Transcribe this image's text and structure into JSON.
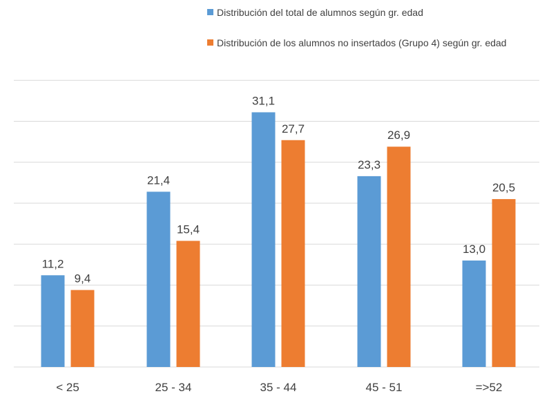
{
  "chart_data": {
    "type": "bar",
    "categories": [
      "< 25",
      "25 - 34",
      "35 - 44",
      "45 - 51",
      "=>52"
    ],
    "series": [
      {
        "name": "Distribución del total de alumnos según gr. edad",
        "color": "#5b9bd5",
        "values": [
          11.2,
          21.4,
          31.1,
          23.3,
          13.0
        ],
        "labels": [
          "11,2",
          "21,4",
          "31,1",
          "23,3",
          "13,0"
        ]
      },
      {
        "name": "Distribución de los alumnos no insertados (Grupo 4) según gr. edad",
        "color": "#ed7d31",
        "values": [
          9.4,
          15.4,
          27.7,
          26.9,
          20.5
        ],
        "labels": [
          "9,4",
          "15,4",
          "27,7",
          "26,9",
          "20,5"
        ]
      }
    ],
    "ylim": [
      0,
      35
    ],
    "grid": true,
    "y_tick_labels": false,
    "legend_position": "top-right"
  }
}
